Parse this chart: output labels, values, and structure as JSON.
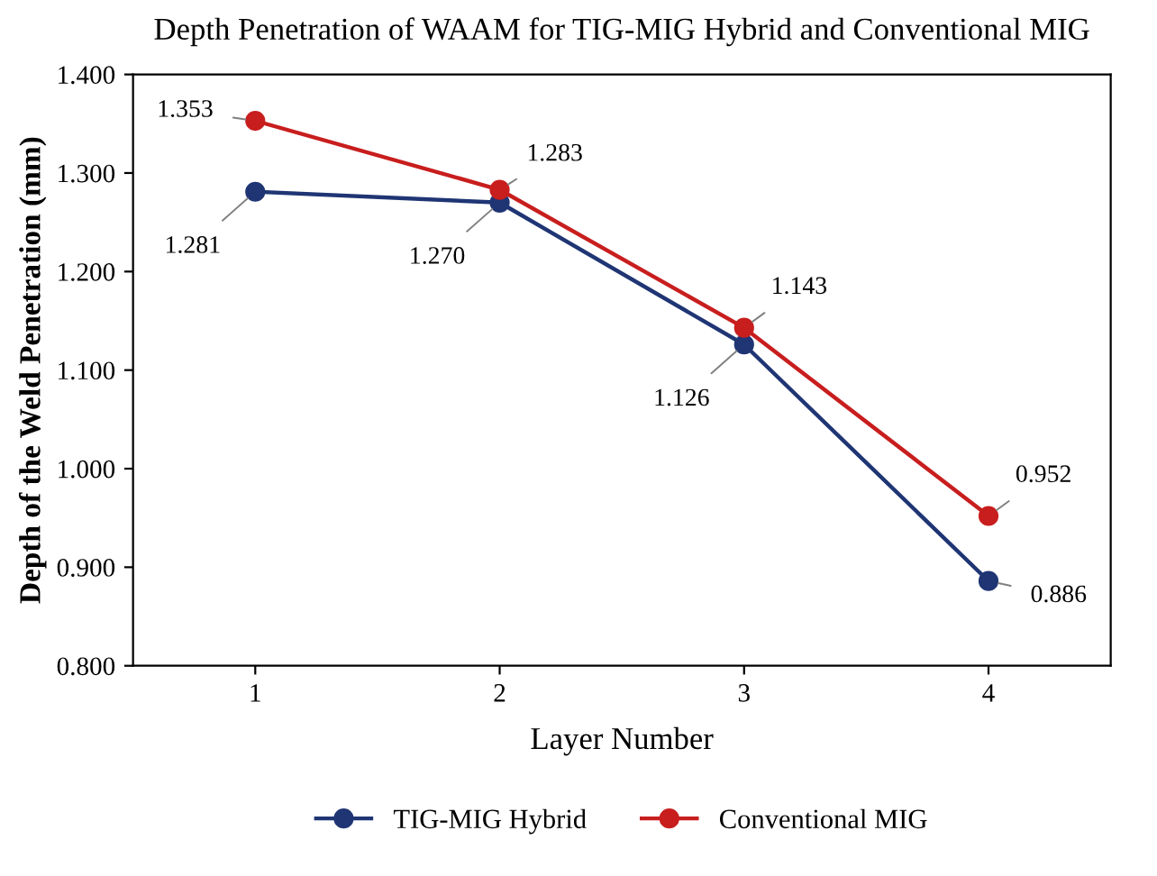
{
  "chart_data": {
    "type": "line",
    "title": "Depth Penetration of WAAM for TIG-MIG Hybrid and Conventional MIG",
    "xlabel": "Layer Number",
    "ylabel": "Depth of the Weld Penetration (mm)",
    "categories": [
      "1",
      "2",
      "3",
      "4"
    ],
    "series": [
      {
        "name": "TIG-MIG Hybrid",
        "color": "#1f3574",
        "values": [
          1.281,
          1.27,
          1.126,
          0.886
        ],
        "value_labels": [
          "1.281",
          "1.270",
          "1.126",
          "0.886"
        ]
      },
      {
        "name": "Conventional MIG",
        "color": "#c81e1e",
        "values": [
          1.353,
          1.283,
          1.143,
          0.952
        ],
        "value_labels": [
          "1.353",
          "1.283",
          "1.143",
          "0.952"
        ]
      }
    ],
    "ylim": [
      0.8,
      1.4
    ],
    "yticks": [
      {
        "value": 0.8,
        "label": "0.800"
      },
      {
        "value": 0.9,
        "label": "0.900"
      },
      {
        "value": 1.0,
        "label": "1.000"
      },
      {
        "value": 1.1,
        "label": "1.100"
      },
      {
        "value": 1.2,
        "label": "1.200"
      },
      {
        "value": 1.3,
        "label": "1.300"
      },
      {
        "value": 1.4,
        "label": "1.400"
      }
    ],
    "grid": false,
    "legend": "bottom",
    "marker": "circle",
    "line_style": "solid"
  }
}
